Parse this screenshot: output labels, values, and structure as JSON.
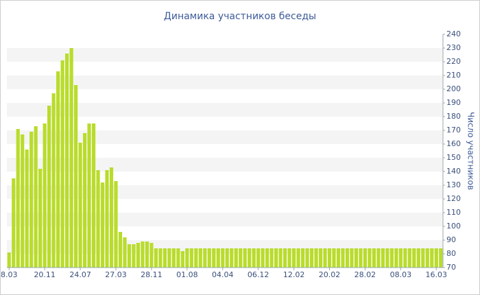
{
  "chart_data": {
    "type": "bar",
    "title": "Динамика участников беседы",
    "y_axis_label": "Число участников",
    "categories": [
      "8.03",
      null,
      null,
      null,
      null,
      null,
      null,
      null,
      "20.11",
      null,
      null,
      null,
      null,
      null,
      null,
      null,
      "24.07",
      null,
      null,
      null,
      null,
      null,
      null,
      null,
      "27.03",
      null,
      null,
      null,
      null,
      null,
      null,
      null,
      "28.11",
      null,
      null,
      null,
      null,
      null,
      null,
      null,
      "01.08",
      null,
      null,
      null,
      null,
      null,
      null,
      null,
      "04.04",
      null,
      null,
      null,
      null,
      null,
      null,
      null,
      "06.12",
      null,
      null,
      null,
      null,
      null,
      null,
      null,
      "12.02",
      null,
      null,
      null,
      null,
      null,
      null,
      null,
      "20.02",
      null,
      null,
      null,
      null,
      null,
      null,
      null,
      "28.02",
      null,
      null,
      null,
      null,
      null,
      null,
      null,
      "08.03",
      null,
      null,
      null,
      null,
      null,
      null,
      null,
      "16.03",
      null
    ],
    "values": [
      81,
      135,
      171,
      167,
      156,
      169,
      173,
      142,
      175,
      188,
      197,
      213,
      221,
      226,
      230,
      203,
      161,
      168,
      175,
      175,
      141,
      132,
      141,
      143,
      133,
      96,
      92,
      87,
      87,
      88,
      89,
      89,
      88,
      84,
      84,
      84,
      84,
      84,
      84,
      82,
      84,
      84,
      84,
      84,
      84,
      84,
      84,
      84,
      84,
      84,
      84,
      84,
      84,
      84,
      84,
      84,
      84,
      84,
      84,
      84,
      84,
      84,
      84,
      84,
      84,
      84,
      84,
      84,
      84,
      84,
      84,
      84,
      84,
      84,
      84,
      84,
      84,
      84,
      84,
      84,
      84,
      84,
      84,
      84,
      84,
      84,
      84,
      84,
      84,
      84,
      84,
      84,
      84,
      84,
      84,
      84,
      84,
      84
    ],
    "color": "#b9dc2c",
    "ylim": [
      70,
      240
    ],
    "yticks": [
      70,
      80,
      90,
      100,
      110,
      120,
      130,
      140,
      150,
      160,
      170,
      180,
      190,
      200,
      210,
      220,
      230,
      240
    ],
    "grid": true
  }
}
